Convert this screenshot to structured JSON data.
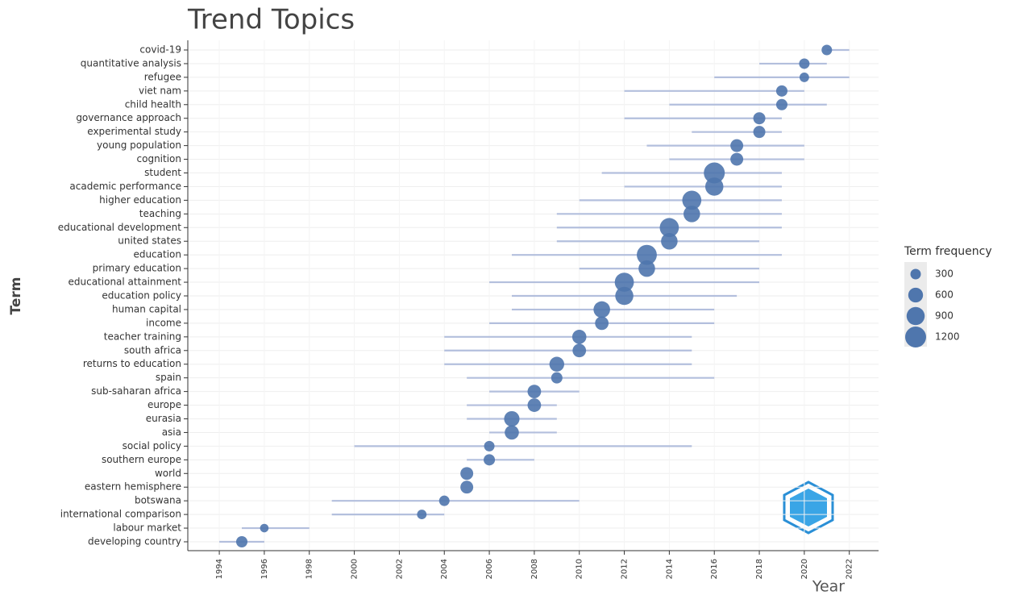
{
  "chart_data": {
    "type": "trend",
    "title": "Trend Topics",
    "x_label": "Year",
    "y_label": "Term",
    "categories": [
      "covid-19",
      "quantitative analysis",
      "refugee",
      "viet nam",
      "child health",
      "governance approach",
      "experimental study",
      "young population",
      "cognition",
      "student",
      "academic performance",
      "higher education",
      "teaching",
      "educational development",
      "united states",
      "education",
      "primary education",
      "educational attainment",
      "education policy",
      "human capital",
      "income",
      "teacher training",
      "south africa",
      "returns to education",
      "spain",
      "sub-saharan africa",
      "europe",
      "eurasia",
      "asia",
      "social policy",
      "southern europe",
      "world",
      "eastern hemisphere",
      "botswana",
      "international comparison",
      "labour market",
      "developing country"
    ],
    "low": [
      2021,
      2018,
      2016,
      2012,
      2014,
      2012,
      2015,
      2013,
      2014,
      2011,
      2012,
      2010,
      2009,
      2009,
      2009,
      2007,
      2010,
      2006,
      2007,
      2007,
      2006,
      2004,
      2004,
      2004,
      2005,
      2006,
      2005,
      2005,
      2006,
      2000,
      2005,
      2005,
      2005,
      1999,
      1999,
      1995,
      1994
    ],
    "values": [
      2021,
      2020,
      2020,
      2019,
      2019,
      2018,
      2018,
      2017,
      2017,
      2016,
      2016,
      2015,
      2015,
      2014,
      2014,
      2013,
      2013,
      2012,
      2012,
      2011,
      2011,
      2010,
      2010,
      2009,
      2009,
      2008,
      2008,
      2007,
      2007,
      2006,
      2006,
      2005,
      2005,
      2004,
      2003,
      1996,
      1995
    ],
    "high": [
      2022,
      2021,
      2022,
      2020,
      2021,
      2019,
      2019,
      2020,
      2020,
      2019,
      2019,
      2019,
      2019,
      2019,
      2018,
      2019,
      2018,
      2018,
      2017,
      2016,
      2016,
      2015,
      2015,
      2015,
      2016,
      2010,
      2009,
      2009,
      2009,
      2015,
      2008,
      2005,
      2005,
      2010,
      2004,
      1998,
      1996
    ],
    "frequency": [
      300,
      300,
      250,
      350,
      350,
      400,
      400,
      450,
      450,
      1200,
      900,
      1000,
      750,
      1000,
      750,
      1100,
      750,
      1000,
      900,
      750,
      500,
      550,
      500,
      600,
      350,
      500,
      500,
      650,
      550,
      300,
      350,
      450,
      450,
      300,
      250,
      200,
      350
    ],
    "dot_color": "#4f76ad",
    "line_color": "#b3bfdd",
    "xlim": [
      1992.6,
      2023.3
    ],
    "xticks": [
      1994,
      1996,
      1998,
      2000,
      2002,
      2004,
      2006,
      2008,
      2010,
      2012,
      2014,
      2016,
      2018,
      2020,
      2022
    ],
    "grid": true,
    "legend": {
      "title": "Term frequency",
      "sizes": [
        300,
        600,
        900,
        1200
      ]
    }
  }
}
